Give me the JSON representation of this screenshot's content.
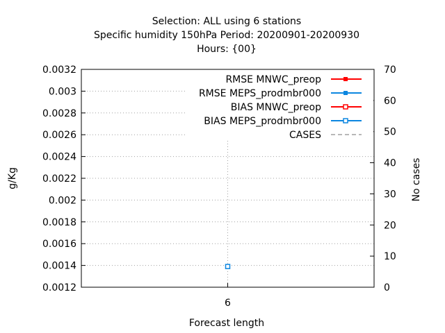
{
  "chart_data": {
    "type": "line",
    "title_lines": [
      "Selection: ALL using     6 stations",
      "Specific humidity 150hPa   Period: 20200901-20200930",
      "Hours: {00}"
    ],
    "xlabel": "Forecast length",
    "ylabel": "g/Kg",
    "y2label": "No cases",
    "x": [
      6
    ],
    "xticks": [
      "6"
    ],
    "ylim": [
      0.0012,
      0.0032
    ],
    "yticks": [
      "0.0032",
      "0.003",
      "0.0028",
      "0.0026",
      "0.0024",
      "0.0022",
      "0.002",
      "0.0018",
      "0.0016",
      "0.0014",
      "0.0012"
    ],
    "y2lim": [
      0,
      70
    ],
    "y2ticks": [
      "70",
      "60",
      "50",
      "40",
      "30",
      "20",
      "10",
      "0"
    ],
    "grid": true,
    "legend_position": "top-right",
    "series": [
      {
        "name": "RMSE MNWC_preop",
        "values": [
          null
        ],
        "color": "#ff0000",
        "marker": "filled-square",
        "axis": "y"
      },
      {
        "name": "RMSE MEPS_prodmbr000",
        "values": [
          0.00311
        ],
        "color": "#0b86e0",
        "marker": "filled-square",
        "axis": "y"
      },
      {
        "name": "BIAS MNWC_preop",
        "values": [
          null
        ],
        "color": "#ff0000",
        "marker": "open-square",
        "axis": "y"
      },
      {
        "name": "BIAS MEPS_prodmbr000",
        "values": [
          0.00139
        ],
        "color": "#0b86e0",
        "marker": "open-square",
        "axis": "y"
      },
      {
        "name": "CASES",
        "values": [
          null
        ],
        "color": "#a0a0a0",
        "marker": "dashed-line",
        "axis": "y2"
      }
    ]
  }
}
